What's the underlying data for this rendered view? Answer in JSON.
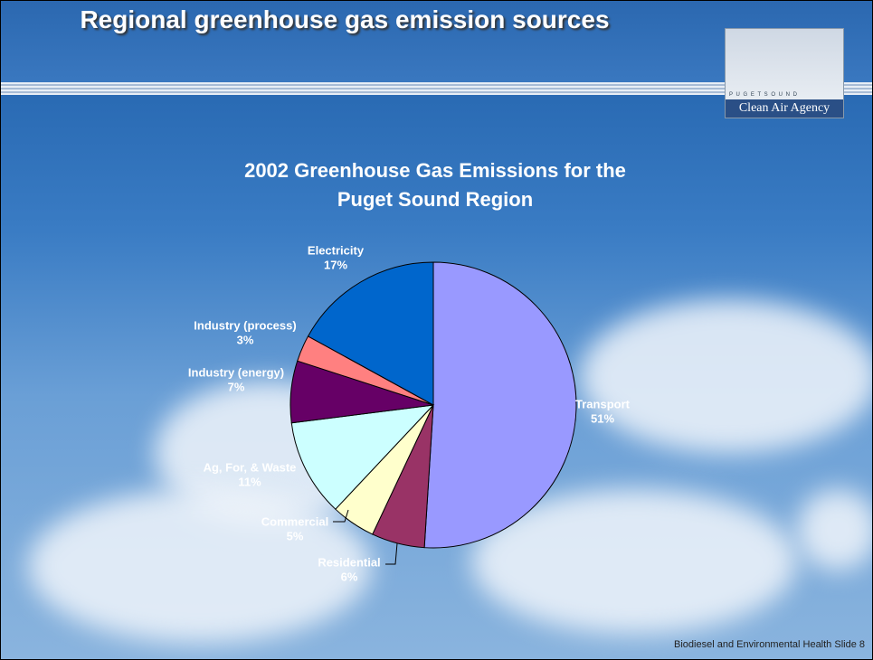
{
  "slide": {
    "title": "Regional greenhouse gas emission sources",
    "footer": "Biodiesel and Environmental Health  Slide 8"
  },
  "logo": {
    "top": "P U G E T   S O U N D",
    "name": "Clean Air Agency"
  },
  "chart_data": {
    "type": "pie",
    "title": "2002 Greenhouse Gas Emissions for the Puget Sound Region",
    "categories": [
      "Transport",
      "Residential",
      "Commercial",
      "Ag, For, & Waste",
      "Industry (energy)",
      "Industry (process)",
      "Electricity"
    ],
    "values": [
      51,
      6,
      5,
      11,
      7,
      3,
      17
    ],
    "value_labels": [
      "51%",
      "6%",
      "5%",
      "11%",
      "7%",
      "3%",
      "17%"
    ],
    "colors": [
      "#9999ff",
      "#993366",
      "#ffffcc",
      "#ccffff",
      "#660066",
      "#ff8080",
      "#0066cc"
    ]
  }
}
